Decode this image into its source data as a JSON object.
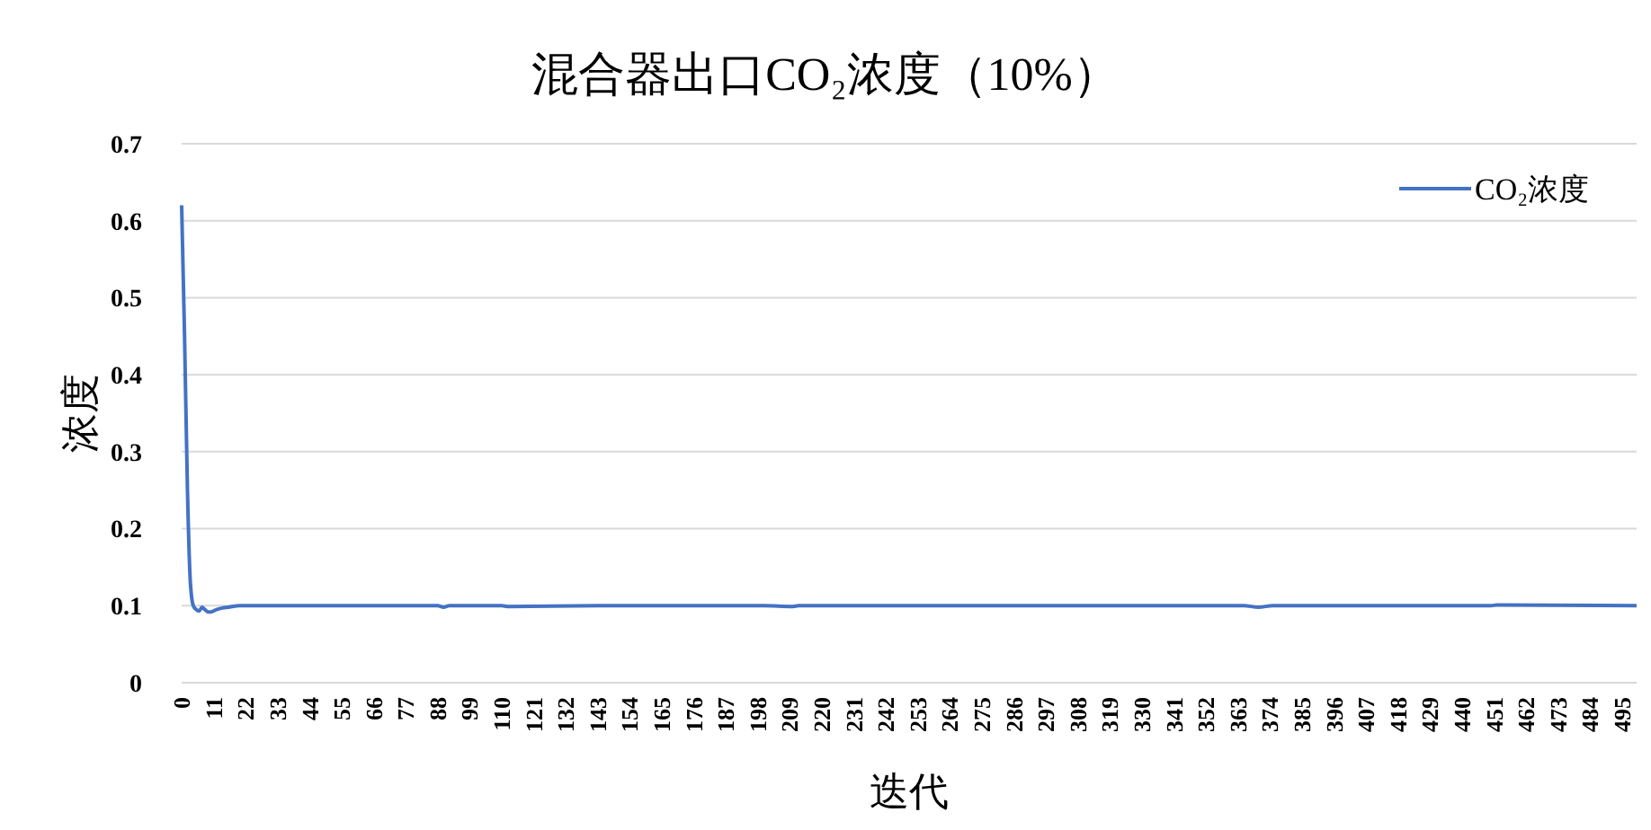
{
  "chart_data": {
    "type": "line",
    "title": "混合器出口CO₂浓度（10%）",
    "xlabel": "迭代",
    "ylabel": "浓度",
    "x": [
      0,
      1,
      2,
      3,
      4,
      5,
      6,
      7,
      8,
      9,
      10,
      12,
      14,
      16,
      20,
      30,
      40,
      88,
      90,
      92,
      110,
      112,
      143,
      200,
      210,
      212,
      300,
      365,
      370,
      375,
      380,
      450,
      452,
      500
    ],
    "series": [
      {
        "name": "CO₂浓度",
        "color": "#4472c4",
        "values": [
          0.62,
          0.45,
          0.25,
          0.13,
          0.1,
          0.095,
          0.093,
          0.098,
          0.095,
          0.092,
          0.092,
          0.095,
          0.097,
          0.098,
          0.1,
          0.1,
          0.1,
          0.1,
          0.098,
          0.1,
          0.1,
          0.099,
          0.1,
          0.1,
          0.099,
          0.1,
          0.1,
          0.1,
          0.098,
          0.1,
          0.1,
          0.1,
          0.101,
          0.1
        ]
      }
    ],
    "xlim": [
      0,
      500
    ],
    "ylim": [
      0,
      0.7
    ],
    "xticks": [
      0,
      11,
      22,
      33,
      44,
      55,
      66,
      77,
      88,
      99,
      110,
      121,
      132,
      143,
      154,
      165,
      176,
      187,
      198,
      209,
      220,
      231,
      242,
      253,
      264,
      275,
      286,
      297,
      308,
      319,
      330,
      341,
      352,
      363,
      374,
      385,
      396,
      407,
      418,
      429,
      440,
      451,
      462,
      473,
      484,
      495
    ],
    "yticks": [
      0,
      0.1,
      0.2,
      0.3,
      0.4,
      0.5,
      0.6,
      0.7
    ],
    "grid": "y",
    "legend": "top right",
    "marker": "none",
    "line_style": "solid"
  }
}
